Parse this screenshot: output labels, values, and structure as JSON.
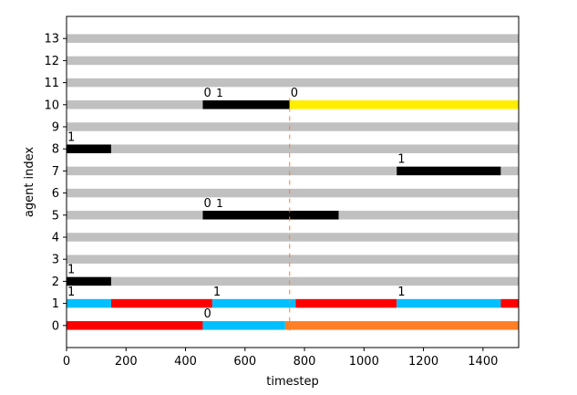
{
  "chart_data": {
    "type": "gantt",
    "xlabel": "timestep",
    "ylabel": "agent index",
    "xlim": [
      0,
      1520
    ],
    "ylim": [
      -1,
      14
    ],
    "xticks": [
      0,
      200,
      400,
      600,
      800,
      1000,
      1200,
      1400
    ],
    "yticks": [
      0,
      1,
      2,
      3,
      4,
      5,
      6,
      7,
      8,
      9,
      10,
      11,
      12,
      13
    ],
    "grid": false,
    "legend": "none",
    "colors": {
      "idle": "#c0c0c0",
      "black": "#000000",
      "red": "#ff0000",
      "cyan": "#00bfff",
      "yellow": "#ffee00",
      "orange": "#ff7f27",
      "marker": "#ff7f27"
    },
    "vline": {
      "x": 750,
      "style": "dashed"
    },
    "rows": [
      {
        "agent": 0,
        "segments": [
          {
            "start": 0,
            "end": 458,
            "color": "red"
          },
          {
            "start": 458,
            "end": 735,
            "color": "cyan"
          },
          {
            "start": 735,
            "end": 1520,
            "color": "orange"
          }
        ]
      },
      {
        "agent": 1,
        "segments": [
          {
            "start": 0,
            "end": 150,
            "color": "cyan"
          },
          {
            "start": 150,
            "end": 490,
            "color": "red"
          },
          {
            "start": 490,
            "end": 770,
            "color": "cyan"
          },
          {
            "start": 770,
            "end": 1110,
            "color": "red"
          },
          {
            "start": 1110,
            "end": 1460,
            "color": "cyan"
          },
          {
            "start": 1460,
            "end": 1520,
            "color": "red"
          }
        ]
      },
      {
        "agent": 2,
        "segments": [
          {
            "start": 0,
            "end": 150,
            "color": "black"
          },
          {
            "start": 150,
            "end": 1520,
            "color": "idle"
          }
        ]
      },
      {
        "agent": 3,
        "segments": [
          {
            "start": 0,
            "end": 1520,
            "color": "idle"
          }
        ]
      },
      {
        "agent": 4,
        "segments": [
          {
            "start": 0,
            "end": 1520,
            "color": "idle"
          }
        ]
      },
      {
        "agent": 5,
        "segments": [
          {
            "start": 0,
            "end": 458,
            "color": "idle"
          },
          {
            "start": 458,
            "end": 915,
            "color": "black"
          },
          {
            "start": 915,
            "end": 1520,
            "color": "idle"
          }
        ]
      },
      {
        "agent": 6,
        "segments": [
          {
            "start": 0,
            "end": 1520,
            "color": "idle"
          }
        ]
      },
      {
        "agent": 7,
        "segments": [
          {
            "start": 0,
            "end": 1110,
            "color": "idle"
          },
          {
            "start": 1110,
            "end": 1460,
            "color": "black"
          },
          {
            "start": 1460,
            "end": 1520,
            "color": "idle"
          }
        ]
      },
      {
        "agent": 8,
        "segments": [
          {
            "start": 0,
            "end": 150,
            "color": "black"
          },
          {
            "start": 150,
            "end": 1520,
            "color": "idle"
          }
        ]
      },
      {
        "agent": 9,
        "segments": [
          {
            "start": 0,
            "end": 1520,
            "color": "idle"
          }
        ]
      },
      {
        "agent": 10,
        "segments": [
          {
            "start": 0,
            "end": 458,
            "color": "idle"
          },
          {
            "start": 458,
            "end": 750,
            "color": "black"
          },
          {
            "start": 750,
            "end": 1520,
            "color": "yellow"
          }
        ]
      },
      {
        "agent": 11,
        "segments": [
          {
            "start": 0,
            "end": 1520,
            "color": "idle"
          }
        ]
      },
      {
        "agent": 12,
        "segments": [
          {
            "start": 0,
            "end": 1520,
            "color": "idle"
          }
        ]
      },
      {
        "agent": 13,
        "segments": [
          {
            "start": 0,
            "end": 1520,
            "color": "idle"
          }
        ]
      }
    ],
    "annotations": [
      {
        "text": "0",
        "x": 458,
        "y": 0.4,
        "style": "normal"
      },
      {
        "text": "1",
        "x": 0,
        "y": 1.4,
        "style": "normal"
      },
      {
        "text": "1",
        "x": 490,
        "y": 1.4,
        "style": "normal"
      },
      {
        "text": "1",
        "x": 1110,
        "y": 1.4,
        "style": "normal"
      },
      {
        "text": "1",
        "x": 0,
        "y": 2.4,
        "style": "normal"
      },
      {
        "text": "0",
        "x": 458,
        "y": 5.4,
        "style": "normal"
      },
      {
        "text": "1",
        "x": 500,
        "y": 5.4,
        "style": "small"
      },
      {
        "text": "1",
        "x": 1110,
        "y": 7.4,
        "style": "normal"
      },
      {
        "text": "1",
        "x": 0,
        "y": 8.4,
        "style": "normal"
      },
      {
        "text": "0",
        "x": 458,
        "y": 10.4,
        "style": "normal"
      },
      {
        "text": "1",
        "x": 500,
        "y": 10.4,
        "style": "small"
      },
      {
        "text": "0",
        "x": 750,
        "y": 10.4,
        "style": "normal"
      }
    ]
  }
}
